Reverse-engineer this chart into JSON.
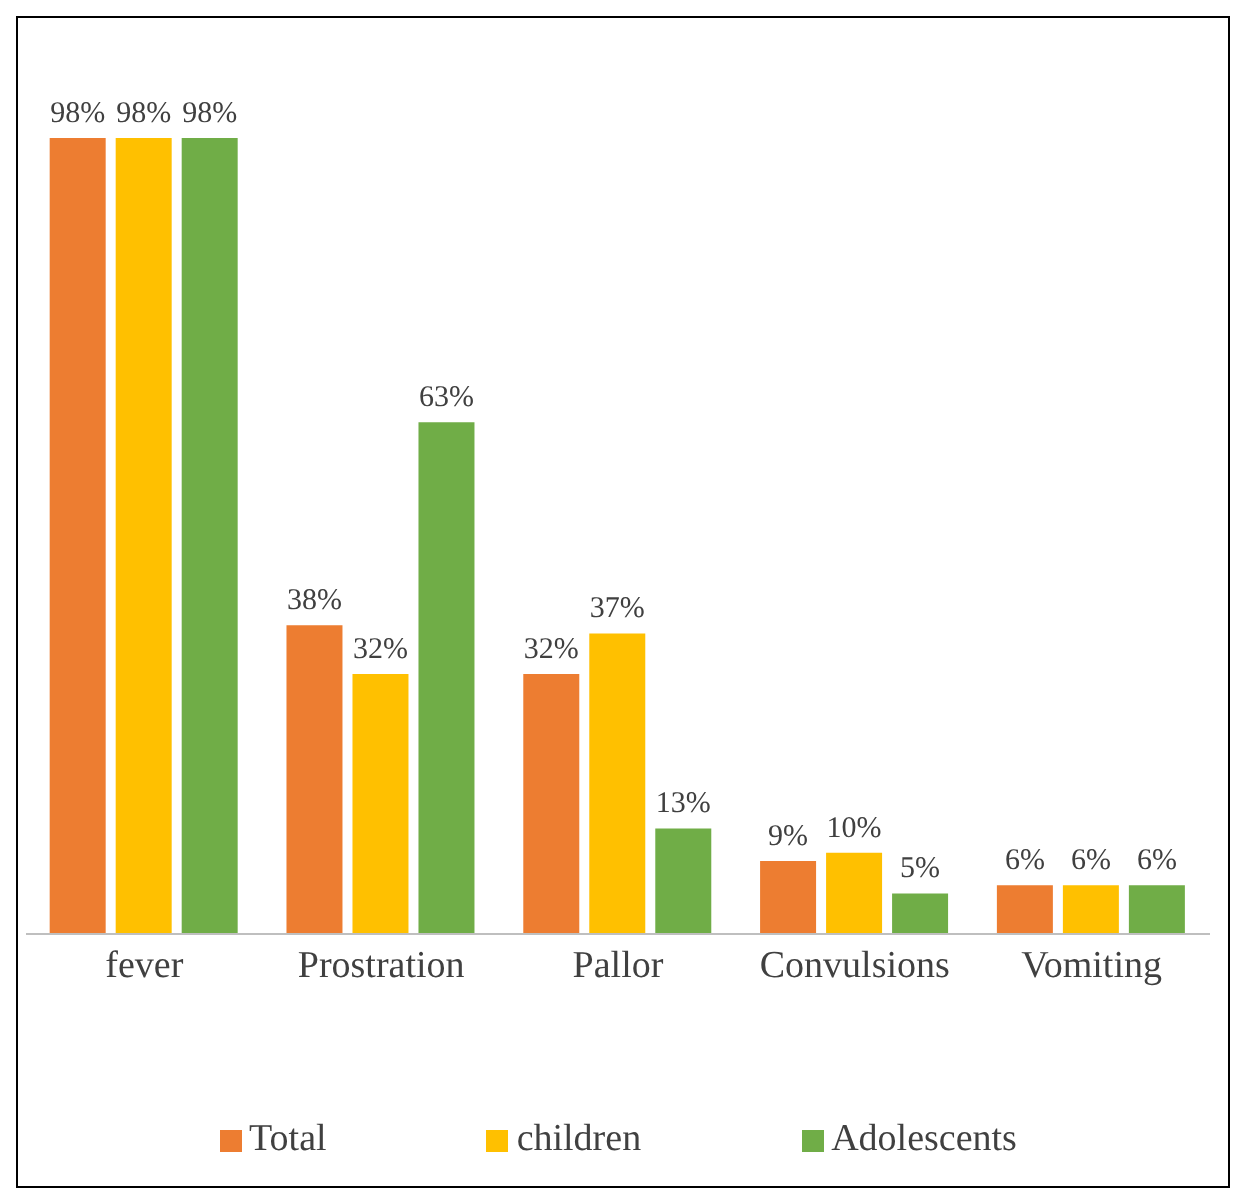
{
  "chart_data": {
    "type": "bar",
    "categories": [
      "fever",
      "Prostration",
      "Pallor",
      "Convulsions",
      "Vomiting"
    ],
    "series": [
      {
        "name": "Total",
        "color": "#ed7d31",
        "values": [
          98,
          38,
          32,
          9,
          6
        ],
        "value_labels": [
          "98%",
          "38%",
          "32%",
          "9%",
          "6%"
        ]
      },
      {
        "name": "children",
        "color": "#ffc000",
        "values": [
          98,
          32,
          37,
          10,
          6
        ],
        "value_labels": [
          "98%",
          "32%",
          "37%",
          "10%",
          "6%"
        ]
      },
      {
        "name": "Adolescents",
        "color": "#70ad47",
        "values": [
          98,
          63,
          13,
          5,
          6
        ],
        "value_labels": [
          "98%",
          "63%",
          "13%",
          "5%",
          "6%"
        ]
      }
    ],
    "legend": "bottom"
  }
}
